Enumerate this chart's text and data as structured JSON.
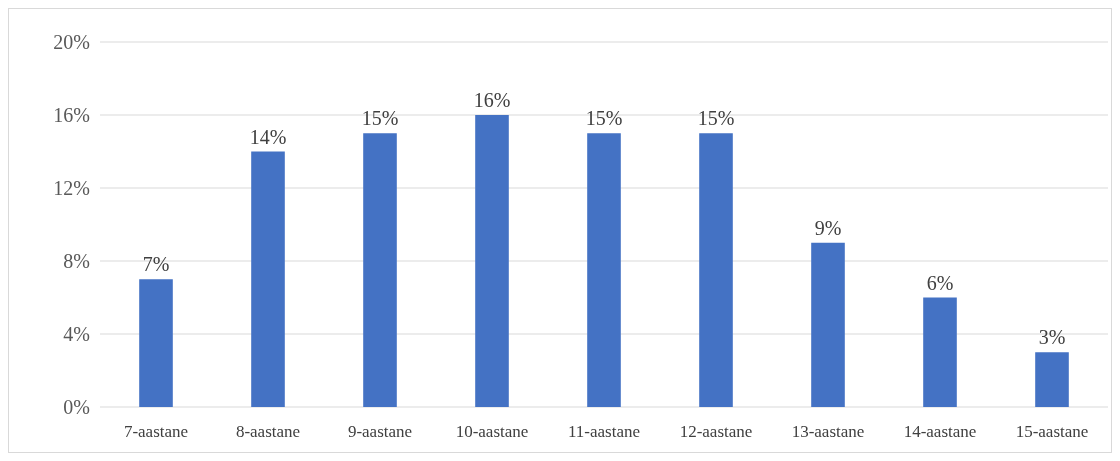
{
  "chart_data": {
    "type": "bar",
    "categories": [
      "7-aastane",
      "8-aastane",
      "9-aastane",
      "10-aastane",
      "11-aastane",
      "12-aastane",
      "13-aastane",
      "14-aastane",
      "15-aastane"
    ],
    "values": [
      7,
      14,
      15,
      16,
      15,
      15,
      9,
      6,
      3
    ],
    "value_labels": [
      "7%",
      "14%",
      "15%",
      "16%",
      "15%",
      "15%",
      "9%",
      "6%",
      "3%"
    ],
    "color": "#4472c4",
    "ylim": [
      0,
      20
    ],
    "yticks": [
      {
        "value": 0,
        "label": "0%"
      },
      {
        "value": 4,
        "label": "4%"
      },
      {
        "value": 8,
        "label": "8%"
      },
      {
        "value": 12,
        "label": "12%"
      },
      {
        "value": 16,
        "label": "16%"
      },
      {
        "value": 20,
        "label": "20%"
      }
    ],
    "grid": "y"
  }
}
